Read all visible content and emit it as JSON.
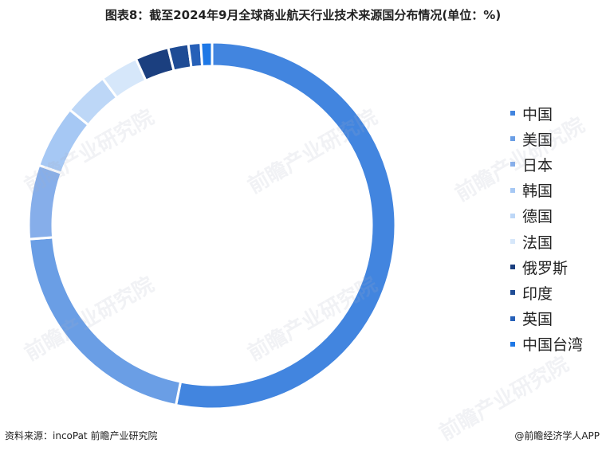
{
  "title": "图表8：截至2024年9月全球商业航天行业技术来源国分布情况(单位：%)",
  "watermark": "前瞻产业研究院",
  "source": "资料来源：incoPat 前瞻产业研究院",
  "brand": "@前瞻经济学人APP",
  "chart_data": {
    "type": "pie",
    "donut": true,
    "title": "图表8：截至2024年9月全球商业航天行业技术来源国分布情况(单位：%)",
    "unit": "%",
    "legend_position": "right",
    "categories": [
      "中国",
      "美国",
      "日本",
      "韩国",
      "德国",
      "法国",
      "俄罗斯",
      "印度",
      "英国",
      "中国台湾"
    ],
    "values": [
      53.8,
      20.9,
      6.6,
      5.6,
      4.0,
      3.4,
      3.0,
      1.8,
      1.1,
      1.0
    ],
    "colors": [
      "#4285DF",
      "#6A9EE5",
      "#86AEEA",
      "#A6C8F4",
      "#BDD7F7",
      "#D6E7FA",
      "#1B3F7F",
      "#1F4C95",
      "#2660B8",
      "#1E78E6"
    ]
  }
}
